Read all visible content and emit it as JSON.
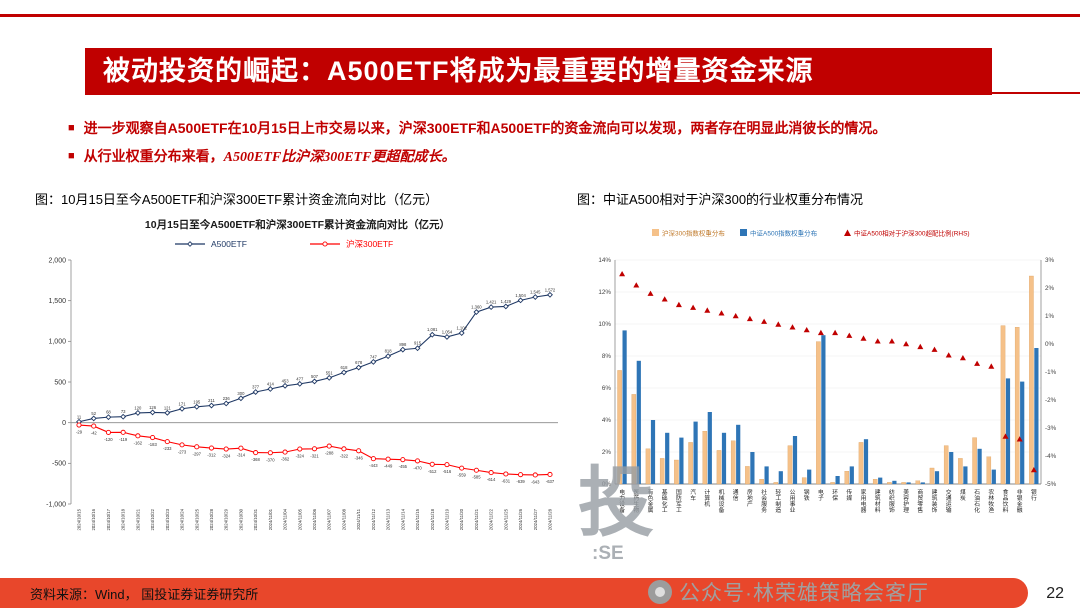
{
  "page": {
    "title": "被动投资的崛起：A500ETF将成为最重要的增量资金来源",
    "bullet_marker": "■",
    "bullet1": "进一步观察自A500ETF在10月15日上市交易以来，沪深300ETF和A500ETF的资金流向可以发现，两者存在明显此消彼长的情况。",
    "bullet2_prefix": "从行业权重分布来看，",
    "bullet2_emphasis": "A500ETF比沪深300ETF更超配成长。",
    "caption_left": "图：10月15日至今A500ETF和沪深300ETF累计资金流向对比（亿元）",
    "caption_right": "图：中证A500相对于沪深300的行业权重分布情况",
    "footer_source": "资料来源：Wind， 国投证券证券研究所",
    "page_number": "22",
    "watermark": "公众号·林荣雄策略会客厅",
    "watermark_logo_char": "投",
    "watermark_logo_sub": ":SE"
  },
  "colors": {
    "accent": "#C00000",
    "footer_bar": "#E8472B",
    "a500_line": "#1F3864",
    "hs300_line": "#FF0000",
    "hs300_bar": "#F5C189",
    "a500_bar": "#2E75B6"
  },
  "chart_data": [
    {
      "type": "line",
      "title": "10月15日至今A500ETF和沪深300ETF累计资金流向对比（亿元）",
      "ylim": [
        -1000,
        2000
      ],
      "yticks": [
        2000,
        1500,
        1000,
        500,
        0,
        -500,
        -1000
      ],
      "legend_position": "top",
      "x": [
        "2024/10/15",
        "2024/10/16",
        "2024/10/17",
        "2024/10/18",
        "2024/10/21",
        "2024/10/22",
        "2024/10/23",
        "2024/10/24",
        "2024/10/25",
        "2024/10/28",
        "2024/10/29",
        "2024/10/30",
        "2024/10/31",
        "2024/11/01",
        "2024/11/04",
        "2024/11/05",
        "2024/11/06",
        "2024/11/07",
        "2024/11/08",
        "2024/11/11",
        "2024/11/12",
        "2024/11/13",
        "2024/11/14",
        "2024/11/15",
        "2024/11/18",
        "2024/11/19",
        "2024/11/20",
        "2024/11/21",
        "2024/11/22",
        "2024/11/25",
        "2024/11/26",
        "2024/11/27",
        "2024/11/28"
      ],
      "series": [
        {
          "name": "A500ETF",
          "color": "#1F3864",
          "marker": "diamond",
          "values": [
            11,
            52,
            68,
            73,
            120,
            126,
            121,
            171,
            195,
            211,
            236,
            300,
            377,
            414,
            453,
            477,
            507,
            551,
            618,
            678,
            747,
            818,
            898,
            915,
            1081,
            1054,
            1102,
            1360,
            1421,
            1429,
            1504,
            1545,
            1572
          ]
        },
        {
          "name": "沪深300ETF",
          "color": "#FF0000",
          "marker": "circle",
          "values": [
            -29,
            -42,
            -120,
            -119,
            -162,
            -183,
            -233,
            -273,
            -297,
            -312,
            -324,
            -314,
            -368,
            -370,
            -362,
            -324,
            -321,
            -288,
            -322,
            -346,
            -443,
            -449,
            -455,
            -470,
            -512,
            -516,
            -559,
            -585,
            -614,
            -631,
            -639,
            -643,
            -637
          ]
        }
      ]
    },
    {
      "type": "bar",
      "title": "中证A500相对于沪深300的行业权重分布情况",
      "left_ylim": [
        0,
        14
      ],
      "right_ylim": [
        -5,
        3
      ],
      "legend_position": "top",
      "categories": [
        "电力设备",
        "医药生物",
        "有色金属",
        "基础化工",
        "国防军工",
        "汽车",
        "计算机",
        "机械设备",
        "通信",
        "房地产",
        "社会服务",
        "轻工制造",
        "公用事业",
        "钢铁",
        "电子",
        "环保",
        "传媒",
        "家用电器",
        "建筑材料",
        "纺织服饰",
        "美容护理",
        "商贸零售",
        "建筑装饰",
        "交通运输",
        "煤炭",
        "石油石化",
        "农林牧渔",
        "食品饮料",
        "非银金融",
        "银行"
      ],
      "series": [
        {
          "name": "沪深300指数权重分布",
          "color": "#F5C189",
          "axis": "left",
          "values": [
            7.1,
            5.6,
            2.2,
            1.6,
            1.5,
            2.6,
            3.3,
            2.1,
            2.7,
            1.1,
            0.3,
            0.1,
            2.4,
            0.4,
            8.9,
            0.1,
            0.8,
            2.6,
            0.3,
            0.1,
            0.1,
            0.2,
            1.0,
            2.4,
            1.6,
            2.9,
            1.7,
            9.9,
            9.8,
            13.0
          ]
        },
        {
          "name": "中证A500指数权重分布",
          "color": "#2E75B6",
          "axis": "left",
          "values": [
            9.6,
            7.7,
            4.0,
            3.2,
            2.9,
            3.9,
            4.5,
            3.2,
            3.7,
            2.0,
            1.1,
            0.8,
            3.0,
            0.9,
            9.3,
            0.5,
            1.1,
            2.8,
            0.4,
            0.2,
            0.1,
            0.1,
            0.8,
            2.0,
            1.1,
            2.2,
            0.9,
            6.6,
            6.4,
            8.5
          ]
        },
        {
          "name": "中证A500相对于沪深300超配比例(RHS)",
          "color": "#C00000",
          "axis": "right",
          "marker": "triangle",
          "values": [
            2.5,
            2.1,
            1.8,
            1.6,
            1.4,
            1.3,
            1.2,
            1.1,
            1.0,
            0.9,
            0.8,
            0.7,
            0.6,
            0.5,
            0.4,
            0.4,
            0.3,
            0.2,
            0.1,
            0.1,
            0.0,
            -0.1,
            -0.2,
            -0.4,
            -0.5,
            -0.7,
            -0.8,
            -3.3,
            -3.4,
            -4.5
          ]
        }
      ]
    }
  ]
}
